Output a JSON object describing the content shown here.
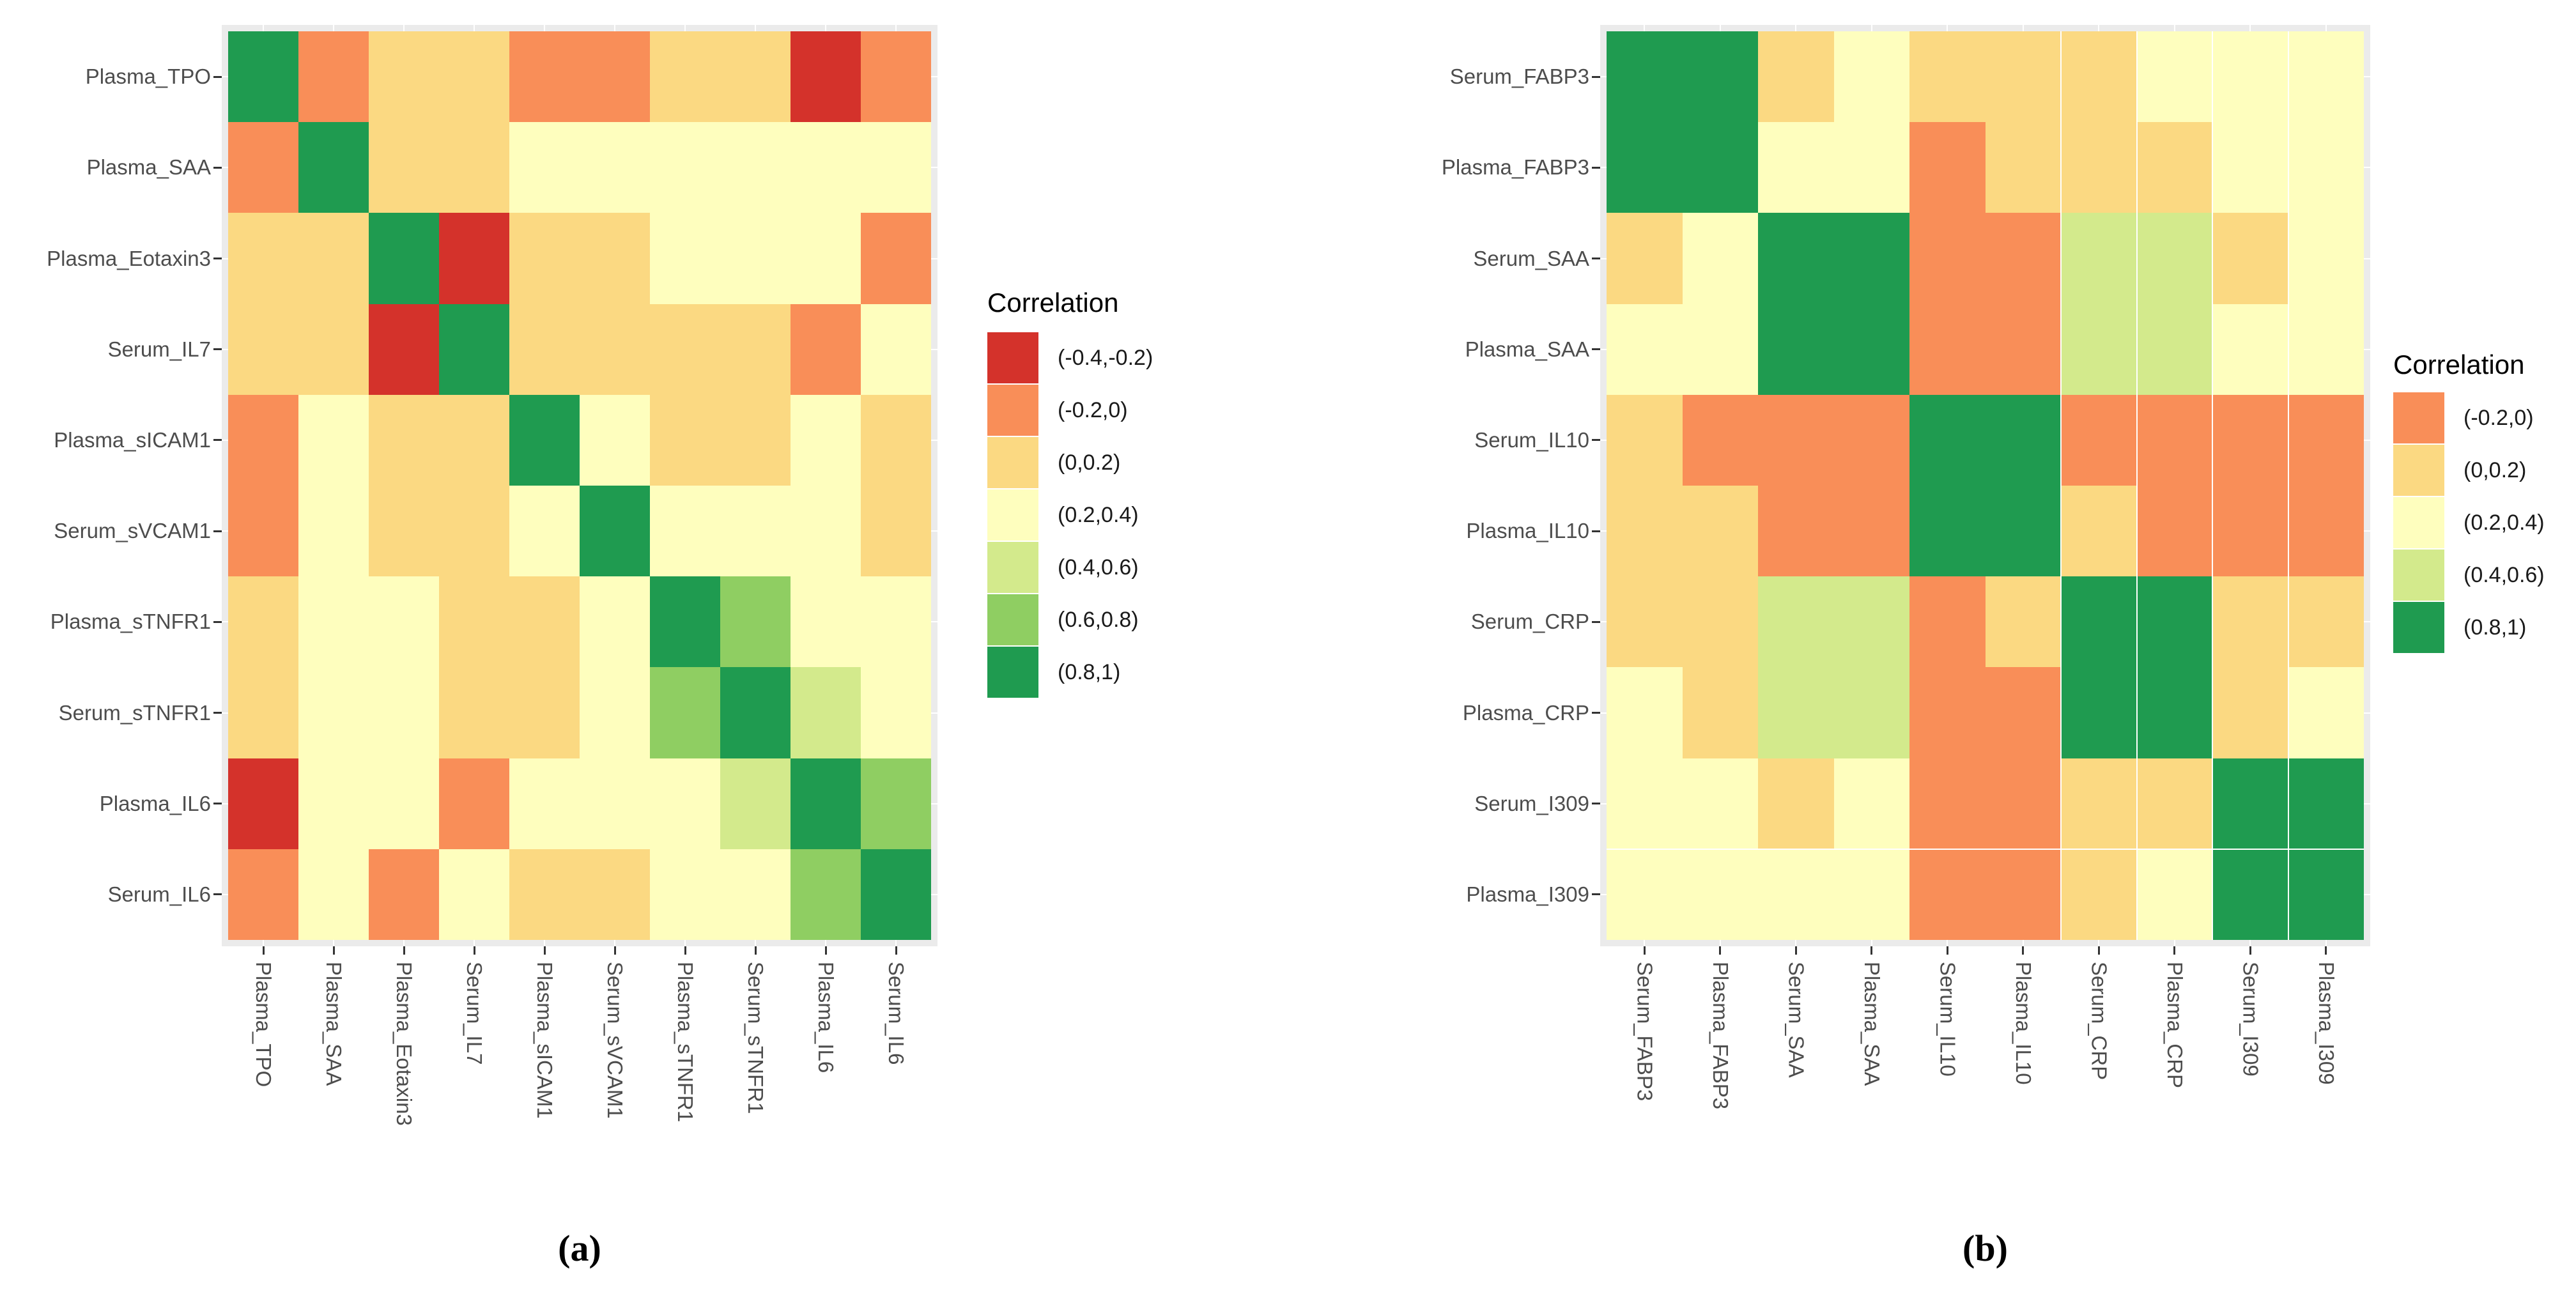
{
  "chart_data": [
    {
      "type": "heatmap",
      "caption": "(a)",
      "legend_title": "Correlation",
      "legend_position": "right",
      "x_tick_rotation": 90,
      "grid": true,
      "legend_bins": [
        {
          "range": "(-0.4,-0.2)",
          "color": "#D4322B"
        },
        {
          "range": "(-0.2,0)",
          "color": "#F98E58"
        },
        {
          "range": "(0,0.2)",
          "color": "#FBD982"
        },
        {
          "range": "(0.2,0.4)",
          "color": "#FEFEBE"
        },
        {
          "range": "(0.4,0.6)",
          "color": "#D3EA8C"
        },
        {
          "range": "(0.6,0.8)",
          "color": "#8FCE62"
        },
        {
          "range": "(0.8,1)",
          "color": "#1F9B50"
        }
      ],
      "rows": [
        "Plasma_TPO",
        "Plasma_SAA",
        "Plasma_Eotaxin3",
        "Serum_IL7",
        "Plasma_sICAM1",
        "Serum_sVCAM1",
        "Plasma_sTNFR1",
        "Serum_sTNFR1",
        "Plasma_IL6",
        "Serum_IL6"
      ],
      "cols": [
        "Plasma_TPO",
        "Plasma_SAA",
        "Plasma_Eotaxin3",
        "Serum_IL7",
        "Plasma_sICAM1",
        "Serum_sVCAM1",
        "Plasma_sTNFR1",
        "Serum_sTNFR1",
        "Plasma_IL6",
        "Serum_IL6"
      ],
      "values": [
        [
          "(0.8,1)",
          "(-0.2,0)",
          "(0,0.2)",
          "(0,0.2)",
          "(-0.2,0)",
          "(-0.2,0)",
          "(0,0.2)",
          "(0,0.2)",
          "(-0.4,-0.2)",
          "(-0.2,0)"
        ],
        [
          "(-0.2,0)",
          "(0.8,1)",
          "(0,0.2)",
          "(0,0.2)",
          "(0.2,0.4)",
          "(0.2,0.4)",
          "(0.2,0.4)",
          "(0.2,0.4)",
          "(0.2,0.4)",
          "(0.2,0.4)"
        ],
        [
          "(0,0.2)",
          "(0,0.2)",
          "(0.8,1)",
          "(-0.4,-0.2)",
          "(0,0.2)",
          "(0,0.2)",
          "(0.2,0.4)",
          "(0.2,0.4)",
          "(0.2,0.4)",
          "(-0.2,0)"
        ],
        [
          "(0,0.2)",
          "(0,0.2)",
          "(-0.4,-0.2)",
          "(0.8,1)",
          "(0,0.2)",
          "(0,0.2)",
          "(0,0.2)",
          "(0,0.2)",
          "(-0.2,0)",
          "(0.2,0.4)"
        ],
        [
          "(-0.2,0)",
          "(0.2,0.4)",
          "(0,0.2)",
          "(0,0.2)",
          "(0.8,1)",
          "(0.2,0.4)",
          "(0,0.2)",
          "(0,0.2)",
          "(0.2,0.4)",
          "(0,0.2)"
        ],
        [
          "(-0.2,0)",
          "(0.2,0.4)",
          "(0,0.2)",
          "(0,0.2)",
          "(0.2,0.4)",
          "(0.8,1)",
          "(0.2,0.4)",
          "(0.2,0.4)",
          "(0.2,0.4)",
          "(0,0.2)"
        ],
        [
          "(0,0.2)",
          "(0.2,0.4)",
          "(0.2,0.4)",
          "(0,0.2)",
          "(0,0.2)",
          "(0.2,0.4)",
          "(0.8,1)",
          "(0.6,0.8)",
          "(0.2,0.4)",
          "(0.2,0.4)"
        ],
        [
          "(0,0.2)",
          "(0.2,0.4)",
          "(0.2,0.4)",
          "(0,0.2)",
          "(0,0.2)",
          "(0.2,0.4)",
          "(0.6,0.8)",
          "(0.8,1)",
          "(0.4,0.6)",
          "(0.2,0.4)"
        ],
        [
          "(-0.4,-0.2)",
          "(0.2,0.4)",
          "(0.2,0.4)",
          "(-0.2,0)",
          "(0.2,0.4)",
          "(0.2,0.4)",
          "(0.2,0.4)",
          "(0.4,0.6)",
          "(0.8,1)",
          "(0.6,0.8)"
        ],
        [
          "(-0.2,0)",
          "(0.2,0.4)",
          "(-0.2,0)",
          "(0.2,0.4)",
          "(0,0.2)",
          "(0,0.2)",
          "(0.2,0.4)",
          "(0.2,0.4)",
          "(0.6,0.8)",
          "(0.8,1)"
        ]
      ]
    },
    {
      "type": "heatmap",
      "caption": "(b)",
      "legend_title": "Correlation",
      "legend_position": "right",
      "x_tick_rotation": 90,
      "grid": true,
      "legend_bins": [
        {
          "range": "(-0.2,0)",
          "color": "#F98E58"
        },
        {
          "range": "(0,0.2)",
          "color": "#FBD982"
        },
        {
          "range": "(0.2,0.4)",
          "color": "#FEFEBE"
        },
        {
          "range": "(0.4,0.6)",
          "color": "#D3EA8C"
        },
        {
          "range": "(0.8,1)",
          "color": "#1F9B50"
        }
      ],
      "rows": [
        "Serum_FABP3",
        "Plasma_FABP3",
        "Serum_SAA",
        "Plasma_SAA",
        "Serum_IL10",
        "Plasma_IL10",
        "Serum_CRP",
        "Plasma_CRP",
        "Serum_I309",
        "Plasma_I309"
      ],
      "cols": [
        "Serum_FABP3",
        "Plasma_FABP3",
        "Serum_SAA",
        "Plasma_SAA",
        "Serum_IL10",
        "Plasma_IL10",
        "Serum_CRP",
        "Plasma_CRP",
        "Serum_I309",
        "Plasma_I309"
      ],
      "values": [
        [
          "(0.8,1)",
          "(0.8,1)",
          "(0,0.2)",
          "(0.2,0.4)",
          "(0,0.2)",
          "(0,0.2)",
          "(0,0.2)",
          "(0.2,0.4)",
          "(0.2,0.4)",
          "(0.2,0.4)"
        ],
        [
          "(0.8,1)",
          "(0.8,1)",
          "(0.2,0.4)",
          "(0.2,0.4)",
          "(-0.2,0)",
          "(0,0.2)",
          "(0,0.2)",
          "(0,0.2)",
          "(0.2,0.4)",
          "(0.2,0.4)"
        ],
        [
          "(0,0.2)",
          "(0.2,0.4)",
          "(0.8,1)",
          "(0.8,1)",
          "(-0.2,0)",
          "(-0.2,0)",
          "(0.4,0.6)",
          "(0.4,0.6)",
          "(0,0.2)",
          "(0.2,0.4)"
        ],
        [
          "(0.2,0.4)",
          "(0.2,0.4)",
          "(0.8,1)",
          "(0.8,1)",
          "(-0.2,0)",
          "(-0.2,0)",
          "(0.4,0.6)",
          "(0.4,0.6)",
          "(0.2,0.4)",
          "(0.2,0.4)"
        ],
        [
          "(0,0.2)",
          "(-0.2,0)",
          "(-0.2,0)",
          "(-0.2,0)",
          "(0.8,1)",
          "(0.8,1)",
          "(-0.2,0)",
          "(-0.2,0)",
          "(-0.2,0)",
          "(-0.2,0)"
        ],
        [
          "(0,0.2)",
          "(0,0.2)",
          "(-0.2,0)",
          "(-0.2,0)",
          "(0.8,1)",
          "(0.8,1)",
          "(0,0.2)",
          "(-0.2,0)",
          "(-0.2,0)",
          "(-0.2,0)"
        ],
        [
          "(0,0.2)",
          "(0,0.2)",
          "(0.4,0.6)",
          "(0.4,0.6)",
          "(-0.2,0)",
          "(0,0.2)",
          "(0.8,1)",
          "(0.8,1)",
          "(0,0.2)",
          "(0,0.2)"
        ],
        [
          "(0.2,0.4)",
          "(0,0.2)",
          "(0.4,0.6)",
          "(0.4,0.6)",
          "(-0.2,0)",
          "(-0.2,0)",
          "(0.8,1)",
          "(0.8,1)",
          "(0,0.2)",
          "(0.2,0.4)"
        ],
        [
          "(0.2,0.4)",
          "(0.2,0.4)",
          "(0,0.2)",
          "(0.2,0.4)",
          "(-0.2,0)",
          "(-0.2,0)",
          "(0,0.2)",
          "(0,0.2)",
          "(0.8,1)",
          "(0.8,1)"
        ],
        [
          "(0.2,0.4)",
          "(0.2,0.4)",
          "(0.2,0.4)",
          "(0.2,0.4)",
          "(-0.2,0)",
          "(-0.2,0)",
          "(0,0.2)",
          "(0.2,0.4)",
          "(0.8,1)",
          "(0.8,1)"
        ]
      ]
    }
  ],
  "colors": {
    "panel_background": "#EBEBEB",
    "grid_line": "#FFFFFF",
    "axis_tick": "#333333",
    "axis_label": "#4D4D4D"
  }
}
